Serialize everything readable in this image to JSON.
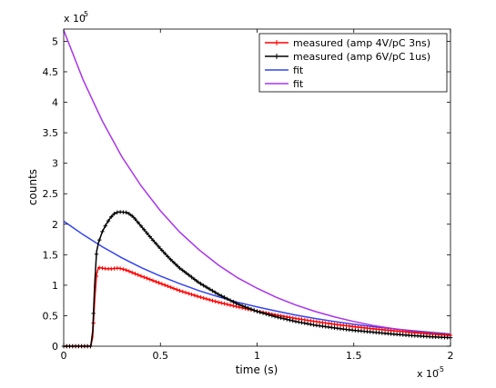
{
  "chart_data": {
    "type": "line",
    "title": "",
    "xlabel": "time (s)",
    "ylabel": "counts",
    "x_exponent_label": "x 10",
    "x_exponent_power": "-5",
    "y_exponent_label": "x 10",
    "y_exponent_power": "5",
    "xlim": [
      0,
      2e-05
    ],
    "ylim": [
      0,
      520000
    ],
    "x_ticks": [
      0,
      5e-06,
      1e-05,
      1.5e-05,
      2e-05
    ],
    "x_tick_labels": [
      "0",
      "0.5",
      "1",
      "1.5",
      "2"
    ],
    "y_ticks": [
      0,
      50000,
      100000,
      150000,
      200000,
      250000,
      300000,
      350000,
      400000,
      450000,
      500000
    ],
    "y_tick_labels": [
      "0",
      "0.5",
      "1",
      "1.5",
      "2",
      "2.5",
      "3",
      "3.5",
      "4",
      "4.5",
      "5"
    ],
    "grid": false,
    "legend_position": "top-right",
    "series": [
      {
        "name": "measured (amp 4V/pC 3ns)",
        "color": "#ff0000",
        "marker": "+",
        "x": [
          0,
          2e-07,
          4e-07,
          6e-07,
          8e-07,
          1e-06,
          1.2e-06,
          1.4e-06,
          1.5e-06,
          1.6e-06,
          1.7e-06,
          1.8e-06,
          2e-06,
          2.2e-06,
          2.5e-06,
          2.8e-06,
          3e-06,
          3.3e-06,
          3.6e-06,
          4e-06,
          4.5e-06,
          5e-06,
          5.5e-06,
          6e-06,
          7e-06,
          8e-06,
          9e-06,
          1e-05,
          1.1e-05,
          1.2e-05,
          1.3e-05,
          1.4e-05,
          1.5e-05,
          1.6e-05,
          1.7e-05,
          1.8e-05,
          1.9e-05,
          2e-05
        ],
        "y": [
          0,
          0,
          0,
          0,
          0,
          0,
          0,
          0,
          15000,
          75000,
          118000,
          129000,
          128000,
          127000,
          127000,
          128000,
          127000,
          124000,
          120000,
          115000,
          109000,
          103000,
          97000,
          91000,
          81000,
          72000,
          64500,
          57500,
          51000,
          45500,
          40500,
          36000,
          32000,
          28500,
          25500,
          22500,
          20000,
          18000
        ]
      },
      {
        "name": "measured (amp 6V/pC 1us)",
        "color": "#000000",
        "marker": "+",
        "x": [
          0,
          2e-07,
          4e-07,
          6e-07,
          8e-07,
          1e-06,
          1.2e-06,
          1.4e-06,
          1.5e-06,
          1.6e-06,
          1.7e-06,
          1.8e-06,
          2e-06,
          2.2e-06,
          2.4e-06,
          2.6e-06,
          2.8e-06,
          3e-06,
          3.3e-06,
          3.6e-06,
          4e-06,
          4.5e-06,
          5e-06,
          5.5e-06,
          6e-06,
          7e-06,
          8e-06,
          9e-06,
          1e-05,
          1.1e-05,
          1.2e-05,
          1.3e-05,
          1.4e-05,
          1.5e-05,
          1.6e-05,
          1.7e-05,
          1.8e-05,
          1.9e-05,
          2e-05
        ],
        "y": [
          0,
          0,
          0,
          0,
          0,
          0,
          0,
          0,
          25000,
          100000,
          155000,
          170000,
          188000,
          200000,
          210000,
          217000,
          220000,
          220000,
          219000,
          212000,
          197000,
          178000,
          160000,
          143000,
          128000,
          104000,
          85000,
          69000,
          57000,
          48000,
          40500,
          34500,
          30000,
          26000,
          23000,
          20000,
          17500,
          15500,
          14000
        ]
      },
      {
        "name": "fit",
        "color": "#3344ee",
        "marker": "",
        "x": [
          0,
          1e-06,
          2e-06,
          3e-06,
          4e-06,
          5e-06,
          6e-06,
          7e-06,
          8e-06,
          9e-06,
          1e-05,
          1.1e-05,
          1.2e-05,
          1.3e-05,
          1.4e-05,
          1.5e-05,
          1.6e-05,
          1.7e-05,
          1.8e-05,
          1.9e-05,
          2e-05
        ],
        "y": [
          205000,
          183000,
          163000,
          145000,
          129000,
          115000,
          102500,
          91000,
          81000,
          72000,
          64500,
          57500,
          51000,
          45500,
          40500,
          36000,
          32000,
          28700,
          25500,
          22800,
          20000
        ]
      },
      {
        "name": "fit",
        "color": "#aa33ee",
        "marker": "",
        "x": [
          0,
          1e-06,
          2e-06,
          3e-06,
          4e-06,
          5e-06,
          6e-06,
          7e-06,
          8e-06,
          9e-06,
          1e-05,
          1.1e-05,
          1.2e-05,
          1.3e-05,
          1.4e-05,
          1.5e-05,
          1.6e-05,
          1.7e-05,
          1.8e-05,
          1.9e-05,
          2e-05
        ],
        "y": [
          518000,
          437000,
          369000,
          311000,
          263000,
          222000,
          187000,
          158000,
          133000,
          112000,
          95000,
          80000,
          67500,
          57000,
          48000,
          40500,
          34000,
          29000,
          24500,
          20500,
          17500
        ]
      }
    ]
  }
}
